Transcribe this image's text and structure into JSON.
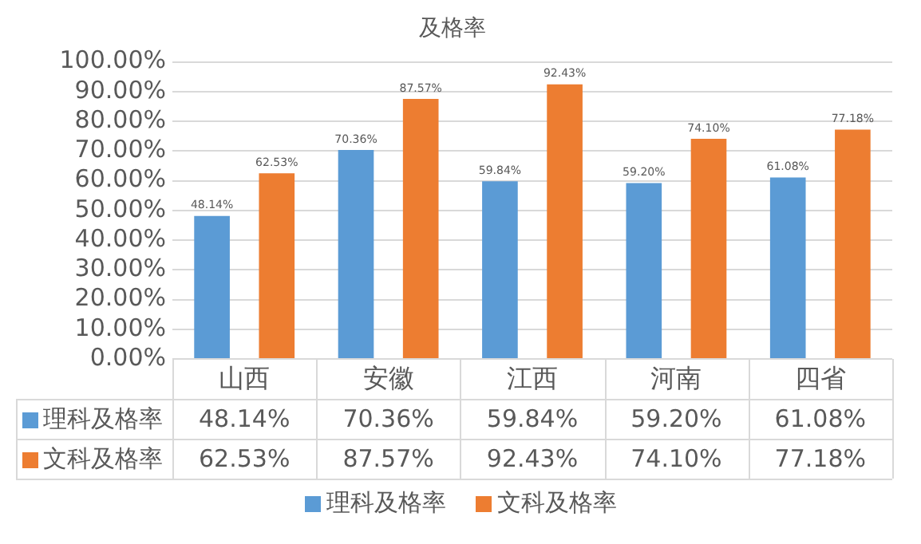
{
  "chart_data": {
    "type": "bar",
    "title": "及格率",
    "categories": [
      "山西",
      "安徽",
      "江西",
      "河南",
      "四省"
    ],
    "series": [
      {
        "name": "理科及格率",
        "color": "#5b9bd5",
        "values": [
          48.14,
          70.36,
          59.84,
          59.2,
          61.08
        ],
        "value_labels": [
          "48.14%",
          "70.36%",
          "59.84%",
          "59.20%",
          "61.08%"
        ]
      },
      {
        "name": "文科及格率",
        "color": "#ed7d31",
        "values": [
          62.53,
          87.57,
          92.43,
          74.1,
          77.18
        ],
        "value_labels": [
          "62.53%",
          "87.57%",
          "92.43%",
          "74.10%",
          "77.18%"
        ]
      }
    ],
    "ylim": [
      0,
      100
    ],
    "yticks": [
      {
        "value": 0,
        "label": "0.00%"
      },
      {
        "value": 10,
        "label": "10.00%"
      },
      {
        "value": 20,
        "label": "20.00%"
      },
      {
        "value": 30,
        "label": "30.00%"
      },
      {
        "value": 40,
        "label": "40.00%"
      },
      {
        "value": 50,
        "label": "50.00%"
      },
      {
        "value": 60,
        "label": "60.00%"
      },
      {
        "value": 70,
        "label": "70.00%"
      },
      {
        "value": 80,
        "label": "80.00%"
      },
      {
        "value": 90,
        "label": "90.00%"
      },
      {
        "value": 100,
        "label": "100.00%"
      }
    ],
    "grid": "y",
    "legend": "bottom"
  }
}
